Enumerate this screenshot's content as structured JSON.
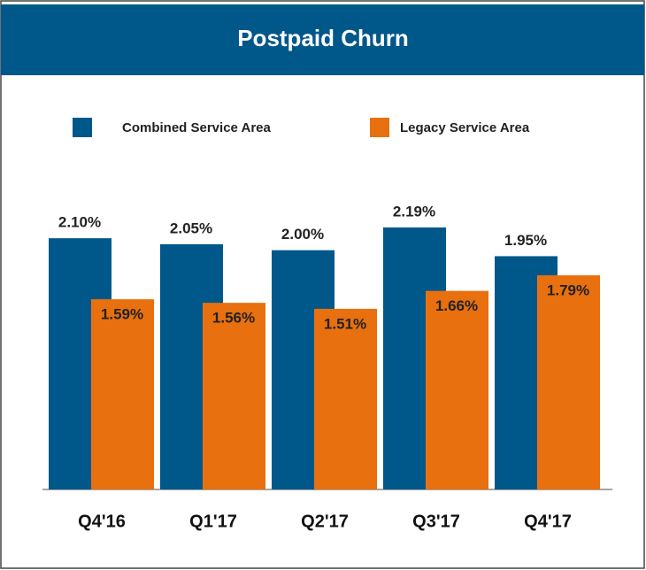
{
  "chart_data": {
    "type": "bar",
    "title": "Postpaid Churn",
    "categories": [
      "Q4'16",
      "Q1'17",
      "Q2'17",
      "Q3'17",
      "Q4'17"
    ],
    "series": [
      {
        "name": "Combined Service Area",
        "color": "#00578a",
        "values": [
          2.1,
          2.05,
          2.0,
          2.19,
          1.95
        ],
        "value_labels": [
          "2.10%",
          "2.05%",
          "2.00%",
          "2.19%",
          "1.95%"
        ]
      },
      {
        "name": "Legacy Service Area",
        "color": "#e8700e",
        "values": [
          1.59,
          1.56,
          1.51,
          1.66,
          1.79
        ],
        "value_labels": [
          "1.59%",
          "1.56%",
          "1.51%",
          "1.66%",
          "1.79%"
        ]
      }
    ],
    "legend": "top"
  }
}
